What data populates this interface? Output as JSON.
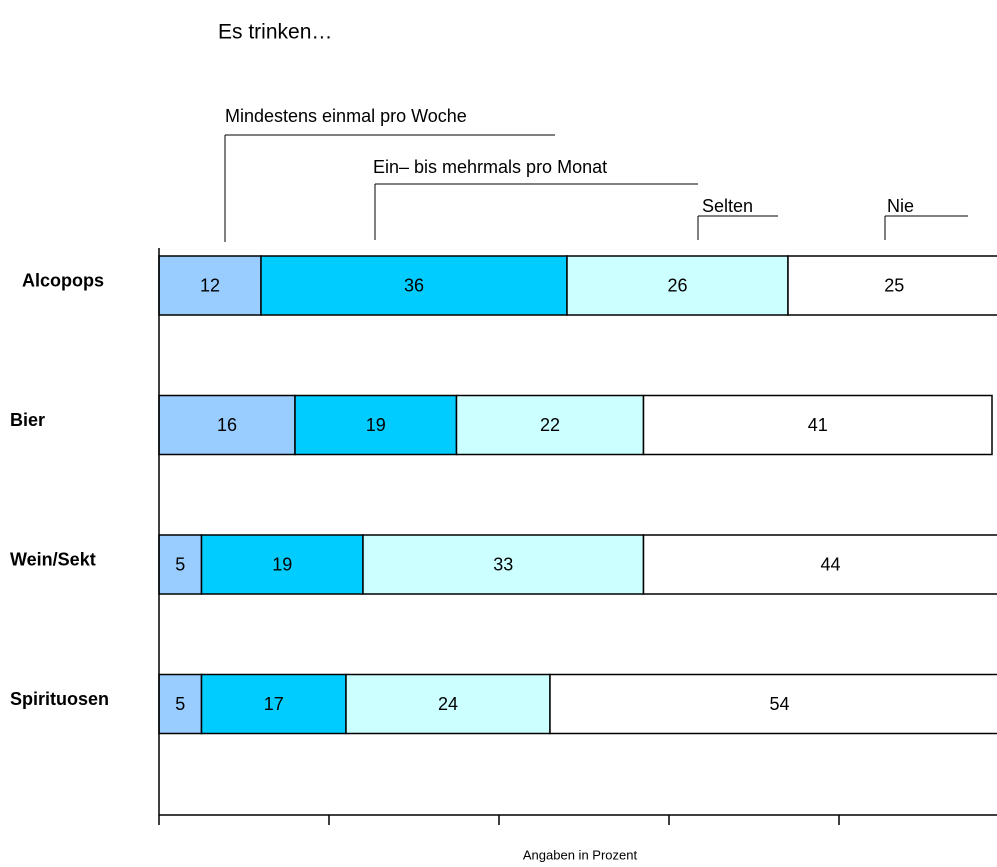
{
  "chart_data": {
    "type": "stacked_bar_horizontal",
    "title": "Es trinken…",
    "x_label": "Angaben in Prozent",
    "categories": [
      "Alcopops",
      "Bier",
      "Wein/Sekt",
      "Spirituosen"
    ],
    "series": [
      {
        "name": "Mindestens einmal pro Woche",
        "color": "#99ccff",
        "values": [
          12,
          16,
          5,
          5
        ]
      },
      {
        "name": "Ein– bis mehrmals pro Monat",
        "color": "#00ccff",
        "values": [
          36,
          19,
          19,
          17
        ]
      },
      {
        "name": "Selten",
        "color": "#ccffff",
        "values": [
          26,
          22,
          33,
          24
        ]
      },
      {
        "name": "Nie",
        "color": "#ffffff",
        "values": [
          25,
          41,
          44,
          54
        ]
      }
    ],
    "xlim": [
      0,
      100
    ],
    "xticks": [
      0,
      20,
      40,
      60,
      80
    ]
  }
}
